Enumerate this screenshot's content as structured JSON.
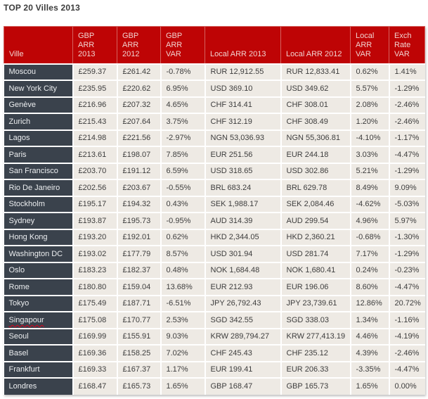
{
  "title": "TOP 20 Villes 2013",
  "colors": {
    "page_bg": "#ffffff",
    "title_text": "#3b3b3b",
    "header_bg": "#be0405",
    "header_border": "#d4625f",
    "header_text": "#f1d3d0",
    "city_bg": "#3a424c",
    "city_text": "#eceef0",
    "cell_bg": "#eeeae4",
    "cell_text": "#3d3d3d"
  },
  "table": {
    "columns": [
      {
        "key": "ville",
        "label": "Ville"
      },
      {
        "key": "gbp_arr_2013",
        "label": "GBP ARR 2013"
      },
      {
        "key": "gbp_arr_2012",
        "label": "GBP ARR 2012"
      },
      {
        "key": "gbp_arr_var",
        "label": "GBP ARR VAR"
      },
      {
        "key": "local_arr_2013",
        "label": "Local ARR 2013"
      },
      {
        "key": "local_arr_2012",
        "label": "Local ARR 2012"
      },
      {
        "key": "local_arr_var",
        "label": "Local ARR VAR"
      },
      {
        "key": "exch_rate_var",
        "label": "Exch Rate VAR"
      }
    ],
    "rows": [
      {
        "ville": "Moscou",
        "gbp_arr_2013": "£259.37",
        "gbp_arr_2012": "£261.42",
        "gbp_arr_var": "-0.78%",
        "local_arr_2013": "RUR 12,912.55",
        "local_arr_2012": "RUR 12,833.41",
        "local_arr_var": "0.62%",
        "exch_rate_var": "1.41%"
      },
      {
        "ville": "New York City",
        "gbp_arr_2013": "£235.95",
        "gbp_arr_2012": "£220.62",
        "gbp_arr_var": "6.95%",
        "local_arr_2013": "USD 369.10",
        "local_arr_2012": "USD 349.62",
        "local_arr_var": "5.57%",
        "exch_rate_var": "-1.29%"
      },
      {
        "ville": "Genève",
        "gbp_arr_2013": "£216.96",
        "gbp_arr_2012": "£207.32",
        "gbp_arr_var": "4.65%",
        "local_arr_2013": "CHF 314.41",
        "local_arr_2012": "CHF 308.01",
        "local_arr_var": "2.08%",
        "exch_rate_var": "-2.46%"
      },
      {
        "ville": "Zurich",
        "gbp_arr_2013": "£215.43",
        "gbp_arr_2012": "£207.64",
        "gbp_arr_var": "3.75%",
        "local_arr_2013": "CHF 312.19",
        "local_arr_2012": "CHF 308.49",
        "local_arr_var": "1.20%",
        "exch_rate_var": "-2.46%"
      },
      {
        "ville": "Lagos",
        "gbp_arr_2013": "£214.98",
        "gbp_arr_2012": "£221.56",
        "gbp_arr_var": "-2.97%",
        "local_arr_2013": "NGN 53,036.93",
        "local_arr_2012": "NGN 55,306.81",
        "local_arr_var": "-4.10%",
        "exch_rate_var": "-1.17%"
      },
      {
        "ville": "Paris",
        "gbp_arr_2013": "£213.61",
        "gbp_arr_2012": "£198.07",
        "gbp_arr_var": "7.85%",
        "local_arr_2013": "EUR 251.56",
        "local_arr_2012": "EUR 244.18",
        "local_arr_var": "3.03%",
        "exch_rate_var": "-4.47%"
      },
      {
        "ville": "San Francisco",
        "gbp_arr_2013": "£203.70",
        "gbp_arr_2012": "£191.12",
        "gbp_arr_var": "6.59%",
        "local_arr_2013": "USD 318.65",
        "local_arr_2012": "USD 302.86",
        "local_arr_var": "5.21%",
        "exch_rate_var": "-1.29%"
      },
      {
        "ville": "Rio De Janeiro",
        "gbp_arr_2013": "£202.56",
        "gbp_arr_2012": "£203.67",
        "gbp_arr_var": "-0.55%",
        "local_arr_2013": "BRL 683.24",
        "local_arr_2012": "BRL 629.78",
        "local_arr_var": "8.49%",
        "exch_rate_var": "9.09%"
      },
      {
        "ville": "Stockholm",
        "gbp_arr_2013": "£195.17",
        "gbp_arr_2012": "£194.32",
        "gbp_arr_var": "0.43%",
        "local_arr_2013": "SEK 1,988.17",
        "local_arr_2012": "SEK 2,084.46",
        "local_arr_var": "-4.62%",
        "exch_rate_var": "-5.03%"
      },
      {
        "ville": "Sydney",
        "gbp_arr_2013": "£193.87",
        "gbp_arr_2012": "£195.73",
        "gbp_arr_var": "-0.95%",
        "local_arr_2013": "AUD 314.39",
        "local_arr_2012": "AUD 299.54",
        "local_arr_var": "4.96%",
        "exch_rate_var": "5.97%"
      },
      {
        "ville": "Hong Kong",
        "gbp_arr_2013": "£193.20",
        "gbp_arr_2012": "£192.01",
        "gbp_arr_var": "0.62%",
        "local_arr_2013": "HKD 2,344.05",
        "local_arr_2012": "HKD 2,360.21",
        "local_arr_var": "-0.68%",
        "exch_rate_var": "-1.30%"
      },
      {
        "ville": "Washington DC",
        "gbp_arr_2013": "£193.02",
        "gbp_arr_2012": "£177.79",
        "gbp_arr_var": "8.57%",
        "local_arr_2013": "USD 301.94",
        "local_arr_2012": "USD 281.74",
        "local_arr_var": "7.17%",
        "exch_rate_var": "-1.29%"
      },
      {
        "ville": "Oslo",
        "gbp_arr_2013": "£183.23",
        "gbp_arr_2012": "£182.37",
        "gbp_arr_var": "0.48%",
        "local_arr_2013": "NOK 1,684.48",
        "local_arr_2012": "NOK 1,680.41",
        "local_arr_var": "0.24%",
        "exch_rate_var": "-0.23%"
      },
      {
        "ville": "Rome",
        "gbp_arr_2013": "£180.80",
        "gbp_arr_2012": "£159.04",
        "gbp_arr_var": "13.68%",
        "local_arr_2013": "EUR 212.93",
        "local_arr_2012": "EUR 196.06",
        "local_arr_var": "8.60%",
        "exch_rate_var": "-4.47%"
      },
      {
        "ville": "Tokyo",
        "gbp_arr_2013": "£175.49",
        "gbp_arr_2012": "£187.71",
        "gbp_arr_var": "-6.51%",
        "local_arr_2013": "JPY 26,792.43",
        "local_arr_2012": "JPY 23,739.61",
        "local_arr_var": "12.86%",
        "exch_rate_var": "20.72%"
      },
      {
        "ville": "Singapour",
        "misspelled": true,
        "gbp_arr_2013": "£175.08",
        "gbp_arr_2012": "£170.77",
        "gbp_arr_var": "2.53%",
        "local_arr_2013": "SGD 342.55",
        "local_arr_2012": "SGD 338.03",
        "local_arr_var": "1.34%",
        "exch_rate_var": "-1.16%"
      },
      {
        "ville": "Seoul",
        "gbp_arr_2013": "£169.99",
        "gbp_arr_2012": "£155.91",
        "gbp_arr_var": "9.03%",
        "local_arr_2013": "KRW 289,794.27",
        "local_arr_2012": "KRW 277,413.19",
        "local_arr_var": "4.46%",
        "exch_rate_var": "-4.19%"
      },
      {
        "ville": "Basel",
        "gbp_arr_2013": "£169.36",
        "gbp_arr_2012": "£158.25",
        "gbp_arr_var": "7.02%",
        "local_arr_2013": "CHF 245.43",
        "local_arr_2012": "CHF 235.12",
        "local_arr_var": "4.39%",
        "exch_rate_var": "-2.46%"
      },
      {
        "ville": "Frankfurt",
        "gbp_arr_2013": "£169.33",
        "gbp_arr_2012": "£167.37",
        "gbp_arr_var": "1.17%",
        "local_arr_2013": "EUR 199.41",
        "local_arr_2012": "EUR 206.33",
        "local_arr_var": "-3.35%",
        "exch_rate_var": "-4.47%"
      },
      {
        "ville": "Londres",
        "gbp_arr_2013": "£168.47",
        "gbp_arr_2012": "£165.73",
        "gbp_arr_var": "1.65%",
        "local_arr_2013": "GBP 168.47",
        "local_arr_2012": "GBP 165.73",
        "local_arr_var": "1.65%",
        "exch_rate_var": "0.00%"
      }
    ]
  }
}
